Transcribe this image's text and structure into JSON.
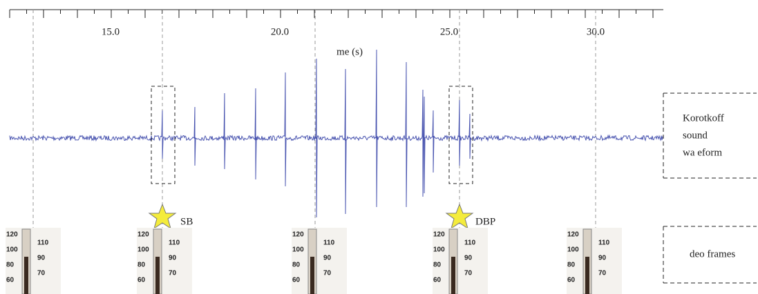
{
  "axis": {
    "ticks": [
      "15.0",
      "20.0",
      "25.0",
      "30.0"
    ],
    "label": "me (s)"
  },
  "annotations": {
    "systolic": "SB",
    "diastolic": "DBP"
  },
  "rows": {
    "waveform": [
      "Korotkoff",
      "sound",
      "wa  eform"
    ],
    "frames": "deo frames"
  },
  "gauge": {
    "left": [
      "120",
      "100",
      "80",
      "60"
    ],
    "right": [
      "110",
      "90",
      "70"
    ]
  }
}
